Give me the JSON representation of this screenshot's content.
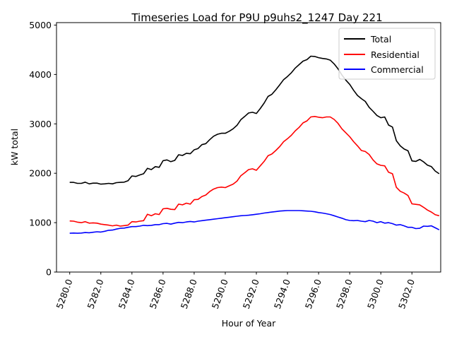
{
  "chart_data": {
    "type": "line",
    "title": "Timeseries Load for P9U p9uhs2_1247  Day 221",
    "xlabel": "Hour of Year",
    "ylabel": "kW total",
    "xlim": [
      5279.15,
      5303.85
    ],
    "ylim": [
      0,
      5050
    ],
    "xticks": [
      5280,
      5282,
      5284,
      5286,
      5288,
      5290,
      5292,
      5294,
      5296,
      5298,
      5300,
      5302
    ],
    "xtick_labels": [
      "5280.0",
      "5282.0",
      "5284.0",
      "5286.0",
      "5288.0",
      "5290.0",
      "5292.0",
      "5294.0",
      "5296.0",
      "5298.0",
      "5300.0",
      "5302.0"
    ],
    "yticks": [
      0,
      1000,
      2000,
      3000,
      4000,
      5000
    ],
    "ytick_labels": [
      "0",
      "1000",
      "2000",
      "3000",
      "4000",
      "5000"
    ],
    "legend_position": "top-right",
    "series": [
      {
        "name": "Total",
        "color": "#000000",
        "x": [
          5280.0,
          5280.25,
          5280.5,
          5280.75,
          5281.0,
          5281.25,
          5281.5,
          5281.75,
          5282.0,
          5282.25,
          5282.5,
          5282.75,
          5283.0,
          5283.25,
          5283.5,
          5283.75,
          5284.0,
          5284.25,
          5284.5,
          5284.75,
          5285.0,
          5285.25,
          5285.5,
          5285.75,
          5286.0,
          5286.25,
          5286.5,
          5286.75,
          5287.0,
          5287.25,
          5287.5,
          5287.75,
          5288.0,
          5288.25,
          5288.5,
          5288.75,
          5289.0,
          5289.25,
          5289.5,
          5289.75,
          5290.0,
          5290.25,
          5290.5,
          5290.75,
          5291.0,
          5291.25,
          5291.5,
          5291.75,
          5292.0,
          5292.25,
          5292.5,
          5292.75,
          5293.0,
          5293.25,
          5293.5,
          5293.75,
          5294.0,
          5294.25,
          5294.5,
          5294.75,
          5295.0,
          5295.25,
          5295.5,
          5295.75,
          5296.0,
          5296.25,
          5296.5,
          5296.75,
          5297.0,
          5297.25,
          5297.5,
          5297.75,
          5298.0,
          5298.25,
          5298.5,
          5298.75,
          5299.0,
          5299.25,
          5299.5,
          5299.75,
          5300.0,
          5300.25,
          5300.5,
          5300.75,
          5301.0,
          5301.25,
          5301.5,
          5301.75,
          5302.0,
          5302.25,
          5302.5,
          5302.75,
          5303.0,
          5303.25,
          5303.5,
          5303.75
        ],
        "values": [
          1815,
          1815,
          1795,
          1795,
          1820,
          1785,
          1800,
          1800,
          1780,
          1785,
          1795,
          1785,
          1810,
          1815,
          1820,
          1850,
          1945,
          1935,
          1965,
          1990,
          2100,
          2075,
          2135,
          2120,
          2255,
          2270,
          2235,
          2260,
          2375,
          2360,
          2405,
          2395,
          2475,
          2500,
          2580,
          2600,
          2680,
          2750,
          2790,
          2810,
          2810,
          2850,
          2900,
          2970,
          3085,
          3150,
          3220,
          3235,
          3210,
          3310,
          3420,
          3555,
          3600,
          3690,
          3790,
          3895,
          3960,
          4035,
          4130,
          4200,
          4270,
          4300,
          4370,
          4365,
          4340,
          4325,
          4315,
          4290,
          4215,
          4115,
          3990,
          3885,
          3800,
          3680,
          3575,
          3510,
          3455,
          3335,
          3255,
          3170,
          3125,
          3140,
          2975,
          2935,
          2660,
          2555,
          2490,
          2455,
          2250,
          2240,
          2280,
          2230,
          2165,
          2135,
          2045,
          1990
        ]
      },
      {
        "name": "Residential",
        "color": "#ff0000",
        "x": [
          5280.0,
          5280.25,
          5280.5,
          5280.75,
          5281.0,
          5281.25,
          5281.5,
          5281.75,
          5282.0,
          5282.25,
          5282.5,
          5282.75,
          5283.0,
          5283.25,
          5283.5,
          5283.75,
          5284.0,
          5284.25,
          5284.5,
          5284.75,
          5285.0,
          5285.25,
          5285.5,
          5285.75,
          5286.0,
          5286.25,
          5286.5,
          5286.75,
          5287.0,
          5287.25,
          5287.5,
          5287.75,
          5288.0,
          5288.25,
          5288.5,
          5288.75,
          5289.0,
          5289.25,
          5289.5,
          5289.75,
          5290.0,
          5290.25,
          5290.5,
          5290.75,
          5291.0,
          5291.25,
          5291.5,
          5291.75,
          5292.0,
          5292.25,
          5292.5,
          5292.75,
          5293.0,
          5293.25,
          5293.5,
          5293.75,
          5294.0,
          5294.25,
          5294.5,
          5294.75,
          5295.0,
          5295.25,
          5295.5,
          5295.75,
          5296.0,
          5296.25,
          5296.5,
          5296.75,
          5297.0,
          5297.25,
          5297.5,
          5297.75,
          5298.0,
          5298.25,
          5298.5,
          5298.75,
          5299.0,
          5299.25,
          5299.5,
          5299.75,
          5300.0,
          5300.25,
          5300.5,
          5300.75,
          5301.0,
          5301.25,
          5301.5,
          5301.75,
          5302.0,
          5302.25,
          5302.5,
          5302.75,
          5303.0,
          5303.25,
          5303.5,
          5303.75
        ],
        "values": [
          1035,
          1030,
          1010,
          1000,
          1020,
          990,
          995,
          990,
          970,
          960,
          950,
          935,
          950,
          930,
          940,
          950,
          1020,
          1015,
          1030,
          1040,
          1170,
          1140,
          1180,
          1165,
          1280,
          1290,
          1270,
          1265,
          1375,
          1360,
          1395,
          1375,
          1465,
          1470,
          1530,
          1560,
          1630,
          1680,
          1710,
          1720,
          1710,
          1745,
          1780,
          1840,
          1950,
          2010,
          2075,
          2090,
          2060,
          2150,
          2240,
          2355,
          2390,
          2460,
          2540,
          2640,
          2700,
          2770,
          2860,
          2930,
          3020,
          3060,
          3140,
          3150,
          3135,
          3125,
          3140,
          3140,
          3090,
          3010,
          2900,
          2820,
          2740,
          2640,
          2555,
          2460,
          2440,
          2380,
          2270,
          2190,
          2160,
          2150,
          2020,
          1990,
          1715,
          1635,
          1600,
          1550,
          1380,
          1370,
          1360,
          1310,
          1255,
          1215,
          1160,
          1140
        ]
      },
      {
        "name": "Commercial",
        "color": "#0000ff",
        "x": [
          5280.0,
          5280.25,
          5280.5,
          5280.75,
          5281.0,
          5281.25,
          5281.5,
          5281.75,
          5282.0,
          5282.25,
          5282.5,
          5282.75,
          5283.0,
          5283.25,
          5283.5,
          5283.75,
          5284.0,
          5284.25,
          5284.5,
          5284.75,
          5285.0,
          5285.25,
          5285.5,
          5285.75,
          5286.0,
          5286.25,
          5286.5,
          5286.75,
          5287.0,
          5287.25,
          5287.5,
          5287.75,
          5288.0,
          5288.25,
          5288.5,
          5288.75,
          5289.0,
          5289.25,
          5289.5,
          5289.75,
          5290.0,
          5290.25,
          5290.5,
          5290.75,
          5291.0,
          5291.25,
          5291.5,
          5291.75,
          5292.0,
          5292.25,
          5292.5,
          5292.75,
          5293.0,
          5293.25,
          5293.5,
          5293.75,
          5294.0,
          5294.25,
          5294.5,
          5294.75,
          5295.0,
          5295.25,
          5295.5,
          5295.75,
          5296.0,
          5296.25,
          5296.5,
          5296.75,
          5297.0,
          5297.25,
          5297.5,
          5297.75,
          5298.0,
          5298.25,
          5298.5,
          5298.75,
          5299.0,
          5299.25,
          5299.5,
          5299.75,
          5300.0,
          5300.25,
          5300.5,
          5300.75,
          5301.0,
          5301.25,
          5301.5,
          5301.75,
          5302.0,
          5302.25,
          5302.5,
          5302.75,
          5303.0,
          5303.25,
          5303.5,
          5303.75
        ],
        "values": [
          785,
          790,
          785,
          790,
          800,
          795,
          805,
          815,
          810,
          825,
          845,
          850,
          870,
          885,
          890,
          905,
          920,
          920,
          930,
          945,
          940,
          945,
          960,
          960,
          980,
          985,
          970,
          990,
          1005,
          1000,
          1015,
          1025,
          1015,
          1030,
          1040,
          1050,
          1060,
          1070,
          1080,
          1090,
          1100,
          1110,
          1120,
          1130,
          1140,
          1145,
          1150,
          1160,
          1170,
          1180,
          1195,
          1205,
          1215,
          1225,
          1235,
          1240,
          1245,
          1245,
          1245,
          1245,
          1240,
          1235,
          1230,
          1220,
          1205,
          1195,
          1180,
          1165,
          1140,
          1115,
          1090,
          1060,
          1045,
          1040,
          1045,
          1030,
          1020,
          1045,
          1030,
          1000,
          1020,
          990,
          1000,
          980,
          950,
          960,
          935,
          905,
          905,
          880,
          885,
          930,
          925,
          935,
          895,
          855
        ]
      }
    ]
  }
}
